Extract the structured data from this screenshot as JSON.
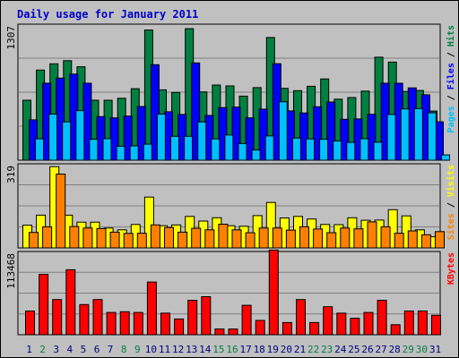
{
  "title": "Daily usage for January 2011",
  "colors": {
    "background": "#c0c0c0",
    "plot_background": "#c0c0c0",
    "grid": "#808080",
    "hits": "#008040",
    "files": "#0000ff",
    "pages": "#00c0ff",
    "visits": "#ffff00",
    "sites": "#ff8000",
    "kbytes": "#ff0000",
    "day_normal": "#000080",
    "day_weekend": "#008040",
    "title": "#0000cc"
  },
  "chart_data": [
    {
      "type": "bar",
      "name": "hits-files-pages",
      "ylabel_max": "1307",
      "ymax": 1307,
      "grid": true,
      "legend": [
        {
          "text": "Pages",
          "color_key": "pages"
        },
        {
          "text": "Files",
          "color_key": "files"
        },
        {
          "text": "Hits",
          "color_key": "hits"
        }
      ],
      "categories": [
        "1",
        "2",
        "3",
        "4",
        "5",
        "6",
        "7",
        "8",
        "9",
        "10",
        "11",
        "12",
        "13",
        "14",
        "15",
        "16",
        "17",
        "18",
        "19",
        "20",
        "21",
        "22",
        "23",
        "24",
        "25",
        "26",
        "27",
        "28",
        "29",
        "30",
        "31"
      ],
      "series": [
        {
          "name": "Hits",
          "color_key": "hits",
          "values": [
            584,
            877,
            938,
            969,
            910,
            584,
            584,
            603,
            696,
            1268,
            685,
            660,
            1281,
            665,
            732,
            723,
            624,
            707,
            1195,
            700,
            677,
            720,
            791,
            594,
            610,
            673,
            1003,
            955,
            669,
            679,
            478
          ]
        },
        {
          "name": "Files",
          "color_key": "files",
          "values": [
            393,
            749,
            799,
            838,
            749,
            424,
            412,
            430,
            523,
            930,
            471,
            445,
            947,
            436,
            512,
            517,
            412,
            497,
            939,
            480,
            460,
            520,
            566,
            398,
            402,
            447,
            749,
            749,
            704,
            637,
            374
          ]
        },
        {
          "name": "Pages",
          "color_key": "pages",
          "values": [
            208,
            449,
            373,
            483,
            204,
            210,
            136,
            139,
            156,
            449,
            233,
            233,
            373,
            207,
            246,
            162,
            99,
            236,
            569,
            215,
            207,
            204,
            187,
            173,
            209,
            175,
            445,
            499,
            503,
            462,
            51
          ]
        }
      ]
    },
    {
      "type": "bar",
      "name": "visits-sites",
      "ylabel_max": "319",
      "ymax": 319,
      "grid": true,
      "legend": [
        {
          "text": "Sites",
          "color_key": "sites"
        },
        {
          "text": "Visits",
          "color_key": "visits"
        }
      ],
      "categories": [
        "1",
        "2",
        "3",
        "4",
        "5",
        "6",
        "7",
        "8",
        "9",
        "10",
        "11",
        "12",
        "13",
        "14",
        "15",
        "16",
        "17",
        "18",
        "19",
        "20",
        "21",
        "22",
        "23",
        "24",
        "25",
        "26",
        "27",
        "28",
        "29",
        "30",
        "31"
      ],
      "series": [
        {
          "name": "Visits",
          "color_key": "visits",
          "values": [
            88,
            127,
            315,
            127,
            100,
            100,
            77,
            70,
            91,
            197,
            86,
            89,
            122,
            104,
            117,
            86,
            84,
            125,
            176,
            116,
            122,
            112,
            91,
            90,
            117,
            107,
            108,
            148,
            124,
            70,
            43
          ]
        },
        {
          "name": "Sites",
          "color_key": "sites",
          "values": [
            60,
            82,
            286,
            83,
            77,
            75,
            61,
            56,
            57,
            89,
            79,
            61,
            76,
            70,
            92,
            70,
            59,
            77,
            77,
            69,
            82,
            73,
            59,
            77,
            74,
            101,
            82,
            57,
            66,
            51,
            63
          ]
        }
      ]
    },
    {
      "type": "bar",
      "name": "kbytes",
      "ylabel_max": "113468",
      "ymax": 113468,
      "grid": true,
      "legend": [
        {
          "text": "KBytes",
          "color_key": "kbytes"
        }
      ],
      "categories": [
        "1",
        "2",
        "3",
        "4",
        "5",
        "6",
        "7",
        "8",
        "9",
        "10",
        "11",
        "12",
        "13",
        "14",
        "15",
        "16",
        "17",
        "18",
        "19",
        "20",
        "21",
        "22",
        "23",
        "24",
        "25",
        "26",
        "27",
        "28",
        "29",
        "30",
        "31"
      ],
      "series": [
        {
          "name": "KBytes",
          "color_key": "kbytes",
          "values": [
            33000,
            84000,
            49000,
            90500,
            42000,
            49000,
            31000,
            32000,
            31000,
            73500,
            30000,
            22000,
            48000,
            53000,
            8000,
            8000,
            41000,
            20000,
            118000,
            17000,
            49000,
            17000,
            39000,
            30000,
            23000,
            31000,
            48000,
            14000,
            33000,
            33000,
            27000
          ]
        }
      ]
    }
  ],
  "days": [
    {
      "label": "1",
      "weekend": false
    },
    {
      "label": "2",
      "weekend": true
    },
    {
      "label": "3",
      "weekend": false
    },
    {
      "label": "4",
      "weekend": false
    },
    {
      "label": "5",
      "weekend": false
    },
    {
      "label": "6",
      "weekend": false
    },
    {
      "label": "7",
      "weekend": false
    },
    {
      "label": "8",
      "weekend": true
    },
    {
      "label": "9",
      "weekend": true
    },
    {
      "label": "10",
      "weekend": false
    },
    {
      "label": "11",
      "weekend": false
    },
    {
      "label": "12",
      "weekend": false
    },
    {
      "label": "13",
      "weekend": false
    },
    {
      "label": "14",
      "weekend": false
    },
    {
      "label": "15",
      "weekend": true
    },
    {
      "label": "16",
      "weekend": true
    },
    {
      "label": "17",
      "weekend": false
    },
    {
      "label": "18",
      "weekend": false
    },
    {
      "label": "19",
      "weekend": false
    },
    {
      "label": "20",
      "weekend": false
    },
    {
      "label": "21",
      "weekend": false
    },
    {
      "label": "22",
      "weekend": true
    },
    {
      "label": "23",
      "weekend": true
    },
    {
      "label": "24",
      "weekend": false
    },
    {
      "label": "25",
      "weekend": false
    },
    {
      "label": "26",
      "weekend": false
    },
    {
      "label": "27",
      "weekend": false
    },
    {
      "label": "28",
      "weekend": false
    },
    {
      "label": "29",
      "weekend": true
    },
    {
      "label": "30",
      "weekend": true
    },
    {
      "label": "31",
      "weekend": false
    }
  ]
}
